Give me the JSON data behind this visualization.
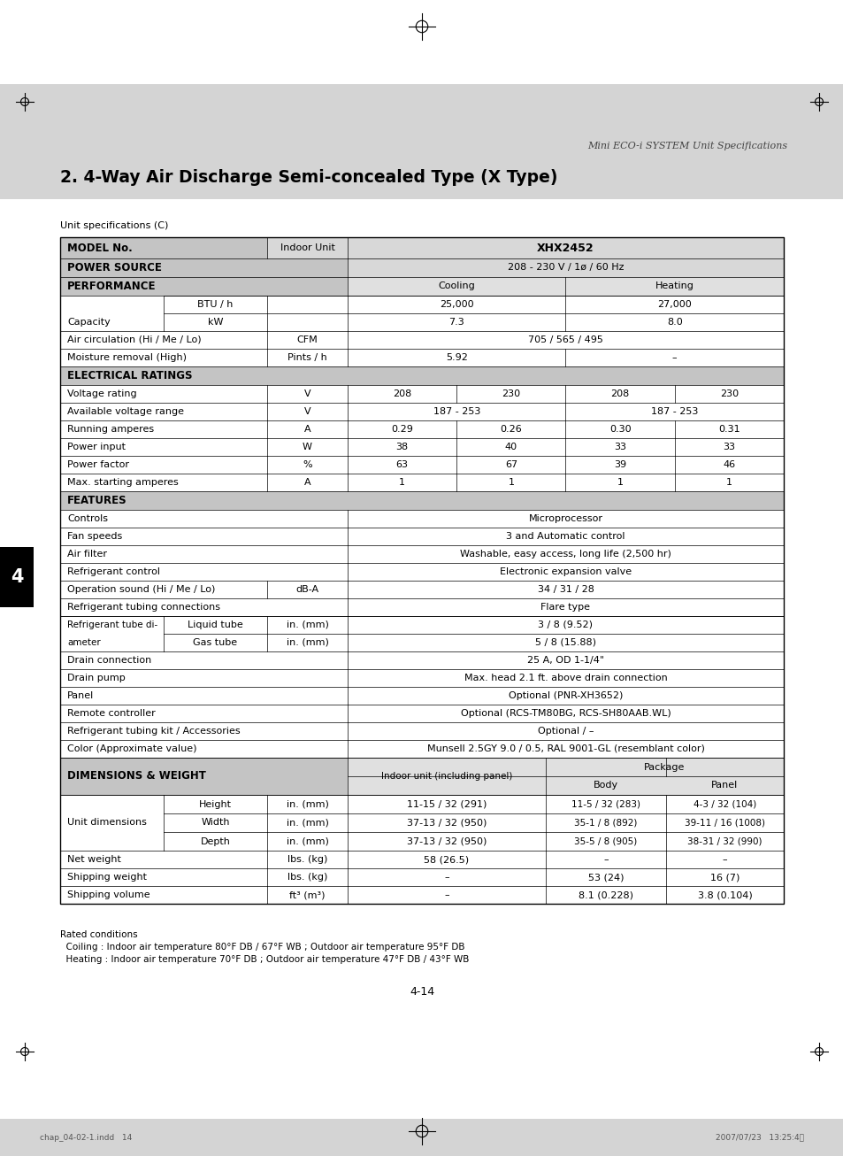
{
  "page_title": "Mini ECO-i SYSTEM Unit Specifications",
  "section_title": "2. 4-Way Air Discharge Semi-concealed Type (X Type)",
  "table_title": "Unit specifications (C)",
  "model": "XHX2452",
  "footer_note1": "Rated conditions",
  "footer_note2": "  Coiling : Indoor air temperature 80°F DB / 67°F WB ; Outdoor air temperature 95°F DB",
  "footer_note3": "  Heating : Indoor air temperature 70°F DB ; Outdoor air temperature 47°F DB / 43°F WB",
  "page_number": "4-14",
  "tab_number": "4",
  "bottom_left": "chap_04-02-1.indd   14",
  "bottom_right": "2007/07/23   13:25:4⨿"
}
